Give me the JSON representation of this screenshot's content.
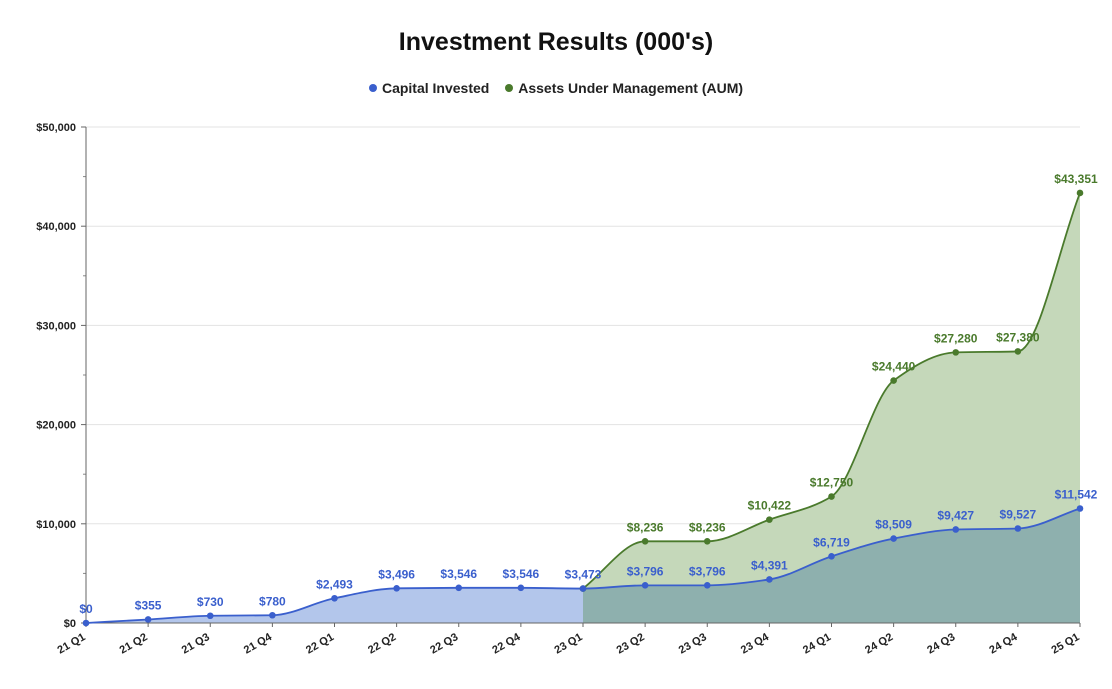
{
  "chart_data": {
    "type": "area",
    "title": "Investment Results (000's)",
    "xlabel": "",
    "ylabel": "",
    "ylim": [
      0,
      50000
    ],
    "yticks": [
      "$0",
      "$10,000",
      "$20,000",
      "$30,000",
      "$40,000",
      "$50,000"
    ],
    "yticks_values": [
      0,
      10000,
      20000,
      30000,
      40000,
      50000
    ],
    "grid": true,
    "legend_position": "top",
    "categories": [
      "21 Q1",
      "21 Q2",
      "21 Q3",
      "21 Q4",
      "22 Q1",
      "22 Q2",
      "22 Q3",
      "22 Q4",
      "23 Q1",
      "23 Q2",
      "23 Q3",
      "23 Q4",
      "24 Q1",
      "24 Q2",
      "24 Q3",
      "24 Q4",
      "25 Q1"
    ],
    "series": [
      {
        "name": "Capital Invested",
        "color": "#3a5fcd",
        "fill": "#b3c6eb",
        "values": [
          0,
          355,
          730,
          780,
          2493,
          3496,
          3546,
          3546,
          3473,
          3796,
          3796,
          4391,
          6719,
          8509,
          9427,
          9527,
          11542
        ],
        "labels": [
          "$0",
          "$355",
          "$730",
          "$780",
          "$2,493",
          "$3,496",
          "$3,546",
          "$3,546",
          "$3,473",
          "$3,796",
          "$3,796",
          "$4,391",
          "$6,719",
          "$8,509",
          "$9,427",
          "$9,527",
          "$11,542"
        ]
      },
      {
        "name": "Assets Under Management (AUM)",
        "color": "#4a7a2c",
        "fill": "#c5d8ba",
        "start_index": 8,
        "values": [
          null,
          null,
          null,
          null,
          null,
          null,
          null,
          null,
          3473,
          8236,
          8236,
          10422,
          12750,
          24440,
          27280,
          27380,
          43351
        ],
        "labels": [
          "",
          "",
          "",
          "",
          "",
          "",
          "",
          "",
          "",
          "$8,236",
          "$8,236",
          "$10,422",
          "$12,750",
          "$24,440",
          "$27,280",
          "$27,380",
          "$43,351"
        ]
      }
    ],
    "overlap_fill": "#8eb0ae"
  }
}
